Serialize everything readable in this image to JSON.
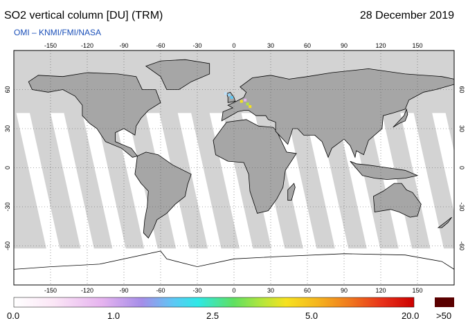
{
  "header": {
    "title": "SO2 vertical column [DU] (TRM)",
    "date": "28 December 2019",
    "credit": "OMI  –  KNMI/FMI/NASA"
  },
  "map": {
    "lon_ticks": [
      "-150",
      "-120",
      "-90",
      "-60",
      "-30",
      "0",
      "30",
      "60",
      "90",
      "120",
      "150"
    ],
    "lat_ticks_left": [
      "60",
      "30",
      "0",
      "-30",
      "-60"
    ],
    "lat_ticks_right": [
      "60",
      "30",
      "0",
      "-30",
      "-60"
    ],
    "colors": {
      "ocean_day": "#ffffff",
      "no_data": "#d3d3d3",
      "land": "#a6a6a6",
      "coast": "#000000"
    }
  },
  "colorbar": {
    "labels": [
      "0.0",
      "1.0",
      "2.5",
      "5.0",
      "20.0",
      ">50"
    ],
    "overflow_color": "#5a0000"
  }
}
